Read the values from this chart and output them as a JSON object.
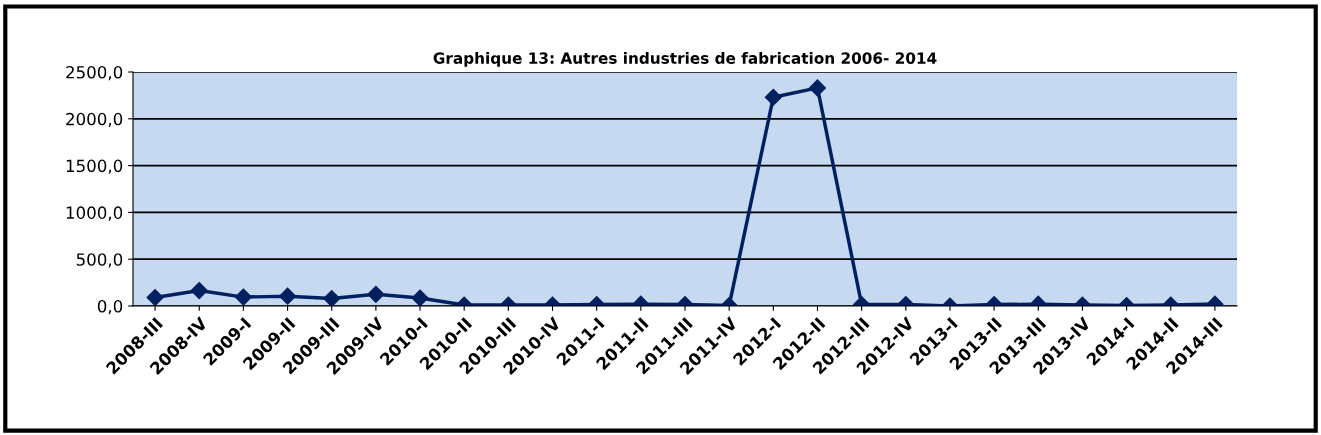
{
  "chart_data": {
    "type": "line",
    "title": "Graphique 13: Autres industries de fabrication 2006- 2014",
    "categories": [
      "2008-III",
      "2008-IV",
      "2009-I",
      "2009-II",
      "2009-III",
      "2009-IV",
      "2010-I",
      "2010-II",
      "2010-III",
      "2010-IV",
      "2011-I",
      "2011-II",
      "2011-III",
      "2011-IV",
      "2012-I",
      "2012-II",
      "2012-III",
      "2012-IV",
      "2013-I",
      "2013-II",
      "2013-III",
      "2013-IV",
      "2014-I",
      "2014-II",
      "2014-III"
    ],
    "series": [
      {
        "color": "#002060",
        "values": [
          90,
          165,
          95,
          105,
          80,
          125,
          85,
          10,
          10,
          10,
          15,
          20,
          15,
          5,
          2230,
          2330,
          15,
          15,
          0,
          15,
          20,
          10,
          5,
          10,
          20
        ]
      }
    ],
    "ylim": [
      0,
      2500
    ],
    "yticks": [
      {
        "value": 0,
        "label": "0,0"
      },
      {
        "value": 500,
        "label": "500,0"
      },
      {
        "value": 1000,
        "label": "1000,0"
      },
      {
        "value": 1500,
        "label": "1500,0"
      },
      {
        "value": 2000,
        "label": "2000,0"
      },
      {
        "value": 2500,
        "label": "2500,0"
      }
    ],
    "grid": "y",
    "marker": "diamond",
    "line_style": "solid",
    "legend": false
  }
}
